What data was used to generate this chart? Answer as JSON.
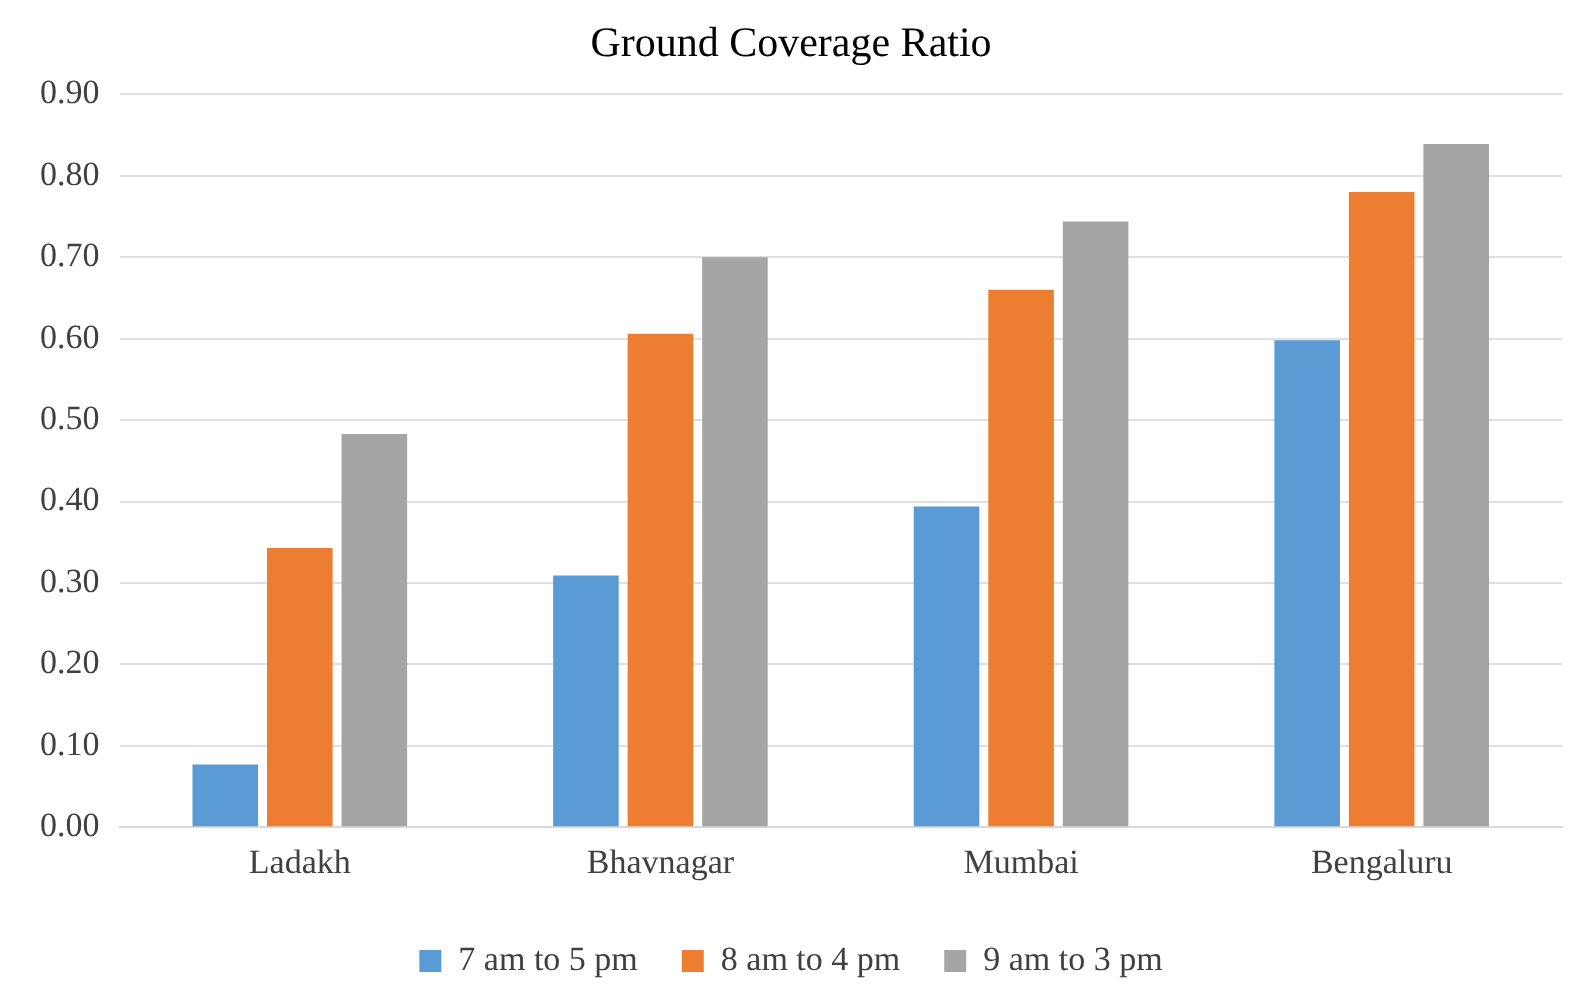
{
  "chart_data": {
    "type": "bar",
    "title": "Ground Coverage Ratio",
    "categories": [
      "Ladakh",
      "Bhavnagar",
      "Mumbai",
      "Bengaluru"
    ],
    "series": [
      {
        "name": "7 am to 5 pm",
        "color": "#5b9bd5",
        "values": [
          0.077,
          0.309,
          0.394,
          0.598
        ]
      },
      {
        "name": "8 am to 4 pm",
        "color": "#ed7d31",
        "values": [
          0.343,
          0.606,
          0.66,
          0.78
        ]
      },
      {
        "name": "9 am to 3 pm",
        "color": "#a5a5a5",
        "values": [
          0.483,
          0.7,
          0.744,
          0.839
        ]
      }
    ],
    "ylim": [
      0,
      0.9
    ],
    "yticks": [
      {
        "value": 0,
        "label": "0.00"
      },
      {
        "value": 0.1,
        "label": "0.10"
      },
      {
        "value": 0.2,
        "label": "0.20"
      },
      {
        "value": 0.3,
        "label": "0.30"
      },
      {
        "value": 0.4,
        "label": "0.40"
      },
      {
        "value": 0.5,
        "label": "0.50"
      },
      {
        "value": 0.6,
        "label": "0.60"
      },
      {
        "value": 0.7,
        "label": "0.70"
      },
      {
        "value": 0.8,
        "label": "0.80"
      },
      {
        "value": 0.9,
        "label": "0.90"
      }
    ],
    "grid": "y",
    "legend": "bottom"
  }
}
